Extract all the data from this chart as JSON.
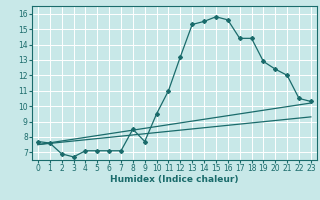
{
  "title": "",
  "xlabel": "Humidex (Indice chaleur)",
  "ylabel": "",
  "xlim": [
    -0.5,
    23.5
  ],
  "ylim": [
    6.5,
    16.5
  ],
  "xticks": [
    0,
    1,
    2,
    3,
    4,
    5,
    6,
    7,
    8,
    9,
    10,
    11,
    12,
    13,
    14,
    15,
    16,
    17,
    18,
    19,
    20,
    21,
    22,
    23
  ],
  "yticks": [
    7,
    8,
    9,
    10,
    11,
    12,
    13,
    14,
    15,
    16
  ],
  "bg_color": "#c8e8e8",
  "line_color": "#1a6b6b",
  "grid_color": "#ffffff",
  "line1_x": [
    0,
    1,
    2,
    3,
    4,
    5,
    6,
    7,
    8,
    9,
    10,
    11,
    12,
    13,
    14,
    15,
    16,
    17,
    18,
    19,
    20,
    21,
    22,
    23
  ],
  "line1_y": [
    7.7,
    7.6,
    6.9,
    6.7,
    7.1,
    7.1,
    7.1,
    7.1,
    8.5,
    7.7,
    9.5,
    11.0,
    13.2,
    15.3,
    15.5,
    15.8,
    15.6,
    14.4,
    14.4,
    12.9,
    12.4,
    12.0,
    10.5,
    10.3
  ],
  "line2_x": [
    0,
    23
  ],
  "line2_y": [
    7.5,
    10.2
  ],
  "line3_x": [
    0,
    23
  ],
  "line3_y": [
    7.5,
    9.3
  ],
  "tick_fontsize": 5.5,
  "xlabel_fontsize": 6.5
}
